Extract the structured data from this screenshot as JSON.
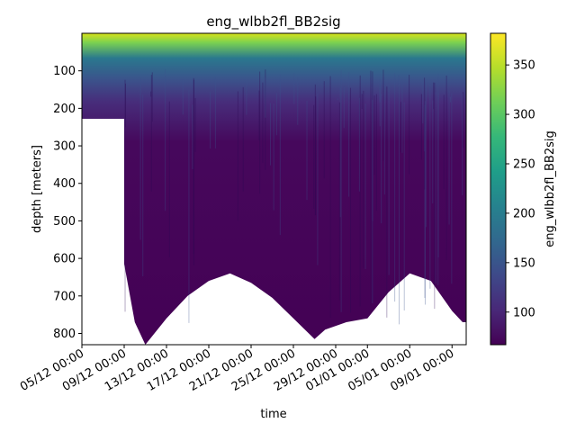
{
  "chart_data": {
    "type": "heatmap",
    "title": "eng_wlbb2fl_BB2sig",
    "xlabel": "time",
    "ylabel": "depth [meters]",
    "colorbar_label": "eng_wlbb2fl_BB2sig",
    "colormap": "viridis",
    "x_ticks": [
      "05/12 00:00",
      "09/12 00:00",
      "13/12 00:00",
      "17/12 00:00",
      "21/12 00:00",
      "25/12 00:00",
      "29/12 00:00",
      "01/01 00:00",
      "05/01 00:00",
      "09/01 00:00"
    ],
    "y_ticks": [
      100,
      200,
      300,
      400,
      500,
      600,
      700,
      800
    ],
    "y_range": [
      830,
      0
    ],
    "y_inverted": true,
    "color_range": [
      67,
      382
    ],
    "colorbar_ticks": [
      100,
      150,
      200,
      250,
      300,
      350
    ],
    "surface_value_approx": 350,
    "upper_layer_value_approx": 140,
    "deep_value_approx": 85,
    "max_depth_profile": [
      {
        "time": "05/12 00:00",
        "depth": 228
      },
      {
        "time": "09/12 00:00",
        "depth": 228
      },
      {
        "time": "09/12 00:00",
        "depth": 615
      },
      {
        "time": "10/12 00:00",
        "depth": 770
      },
      {
        "time": "11/12 00:00",
        "depth": 830
      },
      {
        "time": "13/12 00:00",
        "depth": 760
      },
      {
        "time": "15/12 00:00",
        "depth": 700
      },
      {
        "time": "17/12 00:00",
        "depth": 660
      },
      {
        "time": "19/12 00:00",
        "depth": 640
      },
      {
        "time": "21/12 00:00",
        "depth": 665
      },
      {
        "time": "23/12 00:00",
        "depth": 705
      },
      {
        "time": "25/12 00:00",
        "depth": 760
      },
      {
        "time": "27/12 00:00",
        "depth": 815
      },
      {
        "time": "28/12 00:00",
        "depth": 790
      },
      {
        "time": "30/12 00:00",
        "depth": 770
      },
      {
        "time": "01/01 00:00",
        "depth": 760
      },
      {
        "time": "03/01 00:00",
        "depth": 690
      },
      {
        "time": "05/01 00:00",
        "depth": 640
      },
      {
        "time": "07/01 00:00",
        "depth": 660
      },
      {
        "time": "09/01 00:00",
        "depth": 740
      },
      {
        "time": "10/01 00:00",
        "depth": 770
      }
    ]
  },
  "colors": {
    "viridis_stops": [
      "#440154",
      "#482878",
      "#3e4989",
      "#31688e",
      "#26828e",
      "#1f9e89",
      "#35b779",
      "#6ece58",
      "#b5de2b",
      "#fde725"
    ]
  }
}
